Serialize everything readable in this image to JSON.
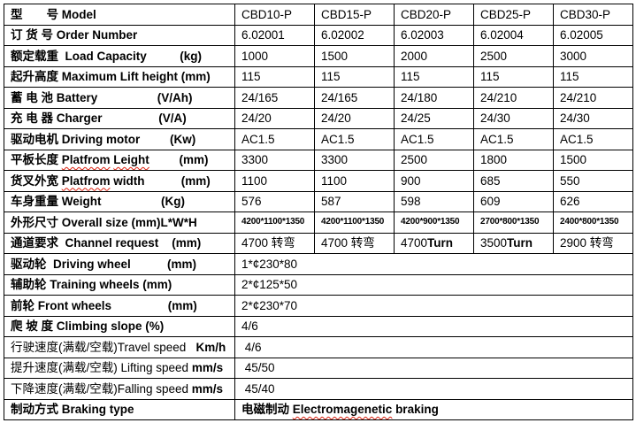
{
  "document": {
    "type": "product-specification-table",
    "text_color": "#000000",
    "border_color": "#000000",
    "background_color": "#ffffff",
    "spellcheck_underline_color": "#dd2211"
  },
  "table": {
    "model_columns": [
      "CBD10-P",
      "CBD15-P",
      "CBD20-P",
      "CBD25-P",
      "CBD30-P"
    ],
    "rows": [
      {
        "id": "model",
        "label": [
          {
            "t": "型　　号 Model",
            "b": true
          }
        ],
        "values": [
          "CBD10-P",
          "CBD15-P",
          "CBD20-P",
          "CBD25-P",
          "CBD30-P"
        ]
      },
      {
        "id": "order-number",
        "label": [
          {
            "t": "订 货 号 Order Number",
            "b": true
          }
        ],
        "values": [
          "6.02001",
          "6.02002",
          "6.02003",
          "6.02004",
          "6.02005"
        ]
      },
      {
        "id": "load-capacity",
        "label": [
          {
            "t": "额定载重  Load Capacity          (kg)",
            "b": true
          }
        ],
        "values": [
          "1000",
          "1500",
          "2000",
          "2500",
          "3000"
        ]
      },
      {
        "id": "max-lift-height",
        "label": [
          {
            "t": "起升高度 Maximum Lift height (mm)",
            "b": true
          }
        ],
        "values": [
          "115",
          "115",
          "115",
          "115",
          "115"
        ]
      },
      {
        "id": "battery",
        "label": [
          {
            "t": "蓄 电 池 Battery                  (V/Ah)",
            "b": true
          }
        ],
        "values": [
          "24/165",
          "24/165",
          "24/180",
          "24/210",
          "24/210"
        ]
      },
      {
        "id": "charger",
        "label": [
          {
            "t": "充 电 器 Charger                 (V/A)",
            "b": true
          }
        ],
        "values": [
          "24/20",
          "24/20",
          "24/25",
          "24/30",
          "24/30"
        ]
      },
      {
        "id": "driving-motor",
        "label": [
          {
            "t": "驱动电机 Driving motor         (Kw)",
            "b": true
          }
        ],
        "values": [
          "AC1.5",
          "AC1.5",
          "AC1.5",
          "AC1.5",
          "AC1.5"
        ]
      },
      {
        "id": "platform-length",
        "label": [
          {
            "t": "平板长度 ",
            "b": true
          },
          {
            "t": "Platfrom",
            "b": true,
            "sq": true
          },
          {
            "t": " ",
            "b": true
          },
          {
            "t": "Leight",
            "b": true,
            "sq": true
          },
          {
            "t": "         (mm)",
            "b": true
          }
        ],
        "values": [
          "3300",
          "3300",
          "2500",
          "1800",
          "1500"
        ]
      },
      {
        "id": "platform-width",
        "label": [
          {
            "t": "货叉外宽 ",
            "b": true
          },
          {
            "t": "Platfrom",
            "b": true,
            "sq": true
          },
          {
            "t": " width           (mm)",
            "b": true
          }
        ],
        "values": [
          "1100",
          "1100",
          "900",
          "685",
          "550"
        ]
      },
      {
        "id": "weight",
        "label": [
          {
            "t": "车身重量 Weight                  (Kg)",
            "b": true
          }
        ],
        "values": [
          "576",
          "587",
          "598",
          "609",
          "626"
        ]
      },
      {
        "id": "overall-size",
        "label": [
          {
            "t": "外形尺寸 Overall size (mm)L*W*H",
            "b": true
          }
        ],
        "small": true,
        "values": [
          "4200*1100*1350",
          "4200*1100*1350",
          "4200*900*1350",
          "2700*800*1350",
          "2400*800*1350"
        ]
      },
      {
        "id": "channel-request",
        "label": [
          {
            "t": "通道要求  Channel request    (mm)",
            "b": true
          }
        ],
        "values": [
          [
            {
              "t": "4700 转弯"
            }
          ],
          [
            {
              "t": "4700 转弯"
            }
          ],
          [
            {
              "t": "4700"
            },
            {
              "t": "Turn",
              "b": true
            }
          ],
          [
            {
              "t": "3500"
            },
            {
              "t": "Turn",
              "b": true
            }
          ],
          [
            {
              "t": "2900 转弯"
            }
          ]
        ]
      },
      {
        "id": "driving-wheel",
        "label": [
          {
            "t": "驱动轮  Driving wheel           (mm)",
            "b": true
          }
        ],
        "span_value": [
          {
            "t": "1*¢230*80"
          }
        ]
      },
      {
        "id": "training-wheels",
        "label": [
          {
            "t": "辅助轮 Training wheels (mm)",
            "b": true
          }
        ],
        "span_value": [
          {
            "t": "2*¢125*50"
          }
        ]
      },
      {
        "id": "front-wheels",
        "label": [
          {
            "t": "前轮 Front wheels                 (mm)",
            "b": true
          }
        ],
        "span_value": [
          {
            "t": "2*¢230*70"
          }
        ]
      },
      {
        "id": "climbing-slope",
        "label": [
          {
            "t": "爬 坡 度 Climbing slope (%)",
            "b": true
          }
        ],
        "span_value": [
          {
            "t": "4/6"
          }
        ]
      },
      {
        "id": "travel-speed",
        "label": [
          {
            "t": "行驶速度(满载/空载)Travel speed   ",
            "b": false
          },
          {
            "t": "Km/h",
            "b": true
          }
        ],
        "span_value": [
          {
            "t": " 4/6"
          }
        ]
      },
      {
        "id": "lifting-speed",
        "label": [
          {
            "t": "提升速度(满载/空载) Lifting speed ",
            "b": false
          },
          {
            "t": "mm/s",
            "b": true
          }
        ],
        "span_value": [
          {
            "t": " 45/50"
          }
        ]
      },
      {
        "id": "falling-speed",
        "label": [
          {
            "t": "下降速度(满载/空载)Falling speed ",
            "b": false
          },
          {
            "t": "mm/s",
            "b": true
          }
        ],
        "span_value": [
          {
            "t": " 45/40"
          }
        ]
      },
      {
        "id": "braking-type",
        "label": [
          {
            "t": "制动方式 Braking type",
            "b": true
          }
        ],
        "span_value": [
          {
            "t": "电磁制动 ",
            "b": true
          },
          {
            "t": "Electromagenetic",
            "b": true,
            "sq": true
          },
          {
            "t": " braking",
            "b": true
          }
        ]
      }
    ]
  }
}
